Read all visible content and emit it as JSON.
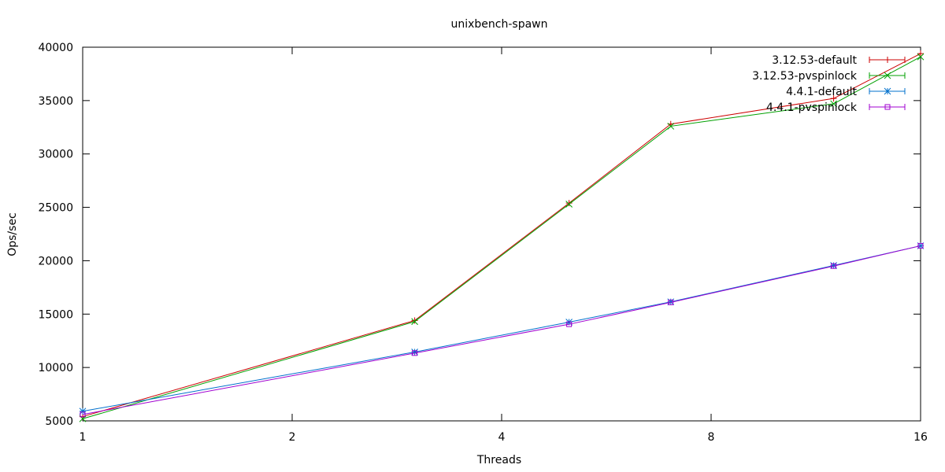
{
  "chart_data": {
    "type": "line",
    "title": "unixbench-spawn",
    "xlabel": "Threads",
    "ylabel": "Ops/sec",
    "x_scale": "log2",
    "xlim": [
      1,
      16
    ],
    "ylim": [
      5000,
      40000
    ],
    "x_ticks": [
      1,
      2,
      4,
      8,
      16
    ],
    "y_ticks": [
      5000,
      10000,
      15000,
      20000,
      25000,
      30000,
      35000,
      40000
    ],
    "grid": false,
    "legend_position": "top-right",
    "x": [
      1,
      3,
      5,
      7,
      12,
      16
    ],
    "series": [
      {
        "name": "3.12.53-default",
        "color": "#cc0000",
        "marker": "plus",
        "values": [
          5400,
          14400,
          25400,
          32800,
          35200,
          39400
        ]
      },
      {
        "name": "3.12.53-pvspinlock",
        "color": "#00a000",
        "marker": "cross",
        "values": [
          5200,
          14300,
          25300,
          32600,
          34700,
          39100
        ]
      },
      {
        "name": "4.4.1-default",
        "color": "#0070cc",
        "marker": "star",
        "values": [
          5900,
          11450,
          14250,
          16150,
          19550,
          21400
        ]
      },
      {
        "name": "4.4.1-pvspinlock",
        "color": "#a000d0",
        "marker": "box",
        "values": [
          5600,
          11350,
          14050,
          16100,
          19500,
          21400
        ]
      }
    ]
  }
}
